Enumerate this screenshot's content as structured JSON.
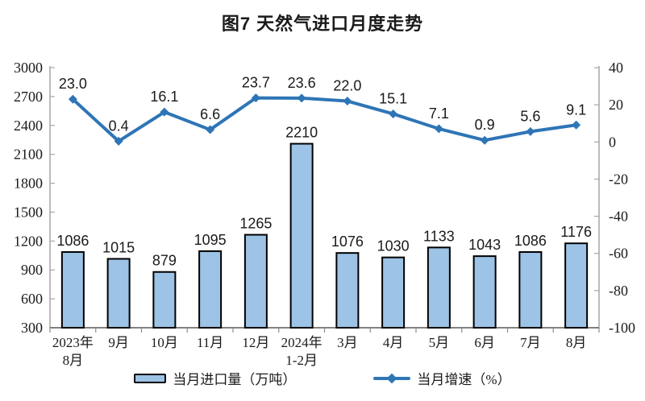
{
  "chart_data": {
    "type": "bar+line-combo",
    "title": "图7 天然气进口月度走势",
    "categories": [
      [
        "2023年",
        "8月"
      ],
      [
        "9月"
      ],
      [
        "10月"
      ],
      [
        "11月"
      ],
      [
        "12月"
      ],
      [
        "2024年",
        "1-2月"
      ],
      [
        "3月"
      ],
      [
        "4月"
      ],
      [
        "5月"
      ],
      [
        "6月"
      ],
      [
        "7月"
      ],
      [
        "8月"
      ]
    ],
    "series": [
      {
        "name": "当月进口量（万吨）",
        "type": "bar",
        "axis": "left",
        "values": [
          1086,
          1015,
          879,
          1095,
          1265,
          2210,
          1076,
          1030,
          1133,
          1043,
          1086,
          1176
        ],
        "labels": [
          "1086",
          "1015",
          "879",
          "1095",
          "1265",
          "2210",
          "1076",
          "1030",
          "1133",
          "1043",
          "1086",
          "1176"
        ]
      },
      {
        "name": "当月增速（%）",
        "type": "line",
        "axis": "right",
        "values": [
          23.0,
          0.4,
          16.1,
          6.6,
          23.7,
          23.6,
          22.0,
          15.1,
          7.1,
          0.9,
          5.6,
          9.1
        ],
        "labels": [
          "23.0",
          "0.4",
          "16.1",
          "6.6",
          "23.7",
          "23.6",
          "22.0",
          "15.1",
          "7.1",
          "0.9",
          "5.6",
          "9.1"
        ]
      }
    ],
    "left_axis": {
      "min": 300,
      "max": 3000,
      "step": 300,
      "ticks": [
        "3000",
        "2700",
        "2400",
        "2100",
        "1800",
        "1500",
        "1200",
        "900",
        "600",
        "300"
      ]
    },
    "right_axis": {
      "min": -100,
      "max": 40,
      "step": 20,
      "ticks": [
        "40",
        "20",
        "0",
        "-20",
        "-40",
        "-60",
        "-80",
        "-100"
      ]
    },
    "grid": false,
    "legend_position": "bottom",
    "colors": {
      "bar_fill": "#9DC3E6",
      "bar_border": "#000000",
      "line": "#2E75B6",
      "axis_line": "#A6A6A6",
      "baseline": "#595959",
      "tick": "#8C8C8C",
      "text": "#1A1A1A"
    }
  }
}
